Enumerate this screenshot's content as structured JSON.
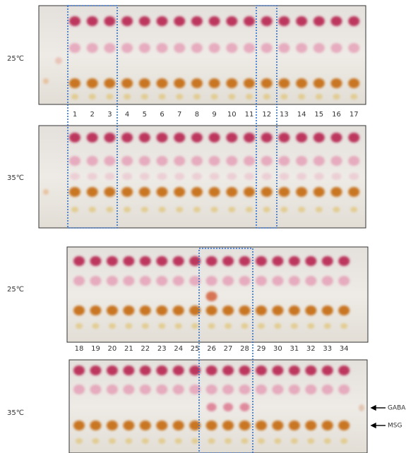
{
  "groups": [
    {
      "plates": [
        {
          "temperature": "25℃"
        },
        {
          "temperature": "35℃"
        }
      ],
      "lane_numbers": [
        1,
        2,
        3,
        4,
        5,
        6,
        7,
        8,
        9,
        10,
        11,
        12,
        13,
        14,
        15,
        16,
        17
      ]
    },
    {
      "plates": [
        {
          "temperature": "25℃"
        },
        {
          "temperature": "35℃"
        }
      ],
      "lane_numbers": [
        18,
        19,
        20,
        21,
        22,
        23,
        24,
        25,
        26,
        27,
        28,
        29,
        30,
        31,
        32,
        33,
        34
      ]
    }
  ],
  "markers": [
    "GABA",
    "MSG"
  ]
}
